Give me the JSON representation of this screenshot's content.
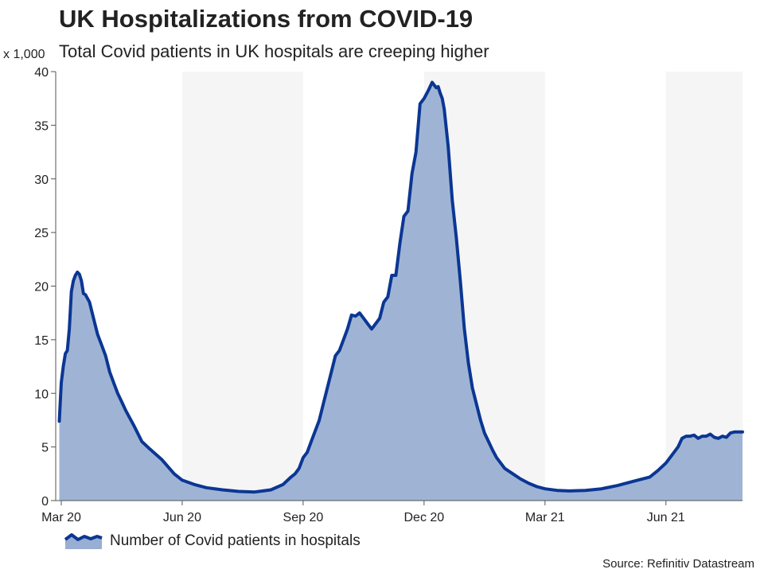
{
  "chart_data": {
    "type": "area",
    "title": "UK Hospitalizations from COVID-19",
    "subtitle": "Total Covid patients in UK hospitals are creeping higher",
    "ylabel": "x 1,000",
    "ylim": [
      0,
      40
    ],
    "yticks": [
      0,
      5,
      10,
      15,
      20,
      25,
      30,
      35,
      40
    ],
    "xlim": [
      0,
      16.9
    ],
    "xticks": [
      {
        "label": "Mar 20",
        "x": 0
      },
      {
        "label": "Jun 20",
        "x": 3
      },
      {
        "label": "Sep 20",
        "x": 6
      },
      {
        "label": "Dec 20",
        "x": 9
      },
      {
        "label": "Mar 21",
        "x": 12
      },
      {
        "label": "Jun 21",
        "x": 15
      }
    ],
    "shaded_bands": [
      [
        3,
        6
      ],
      [
        9,
        12
      ],
      [
        15,
        16.9
      ]
    ],
    "legend": "Number of Covid patients in hospitals",
    "source": "Source: Refinitiv Datastream",
    "colors": {
      "line": "#0b3693",
      "fill": "#98aed2",
      "band": "#f5f5f6"
    },
    "series": [
      {
        "name": "Number of Covid patients in hospitals",
        "x": [
          -0.05,
          0.0,
          0.05,
          0.1,
          0.15,
          0.2,
          0.25,
          0.3,
          0.35,
          0.4,
          0.45,
          0.5,
          0.55,
          0.6,
          0.7,
          0.8,
          0.9,
          1.0,
          1.1,
          1.2,
          1.3,
          1.4,
          1.5,
          1.6,
          1.8,
          2.0,
          2.2,
          2.5,
          2.8,
          3.0,
          3.3,
          3.6,
          4.0,
          4.4,
          4.8,
          5.0,
          5.2,
          5.5,
          5.7,
          5.8,
          5.9,
          6.0,
          6.1,
          6.2,
          6.3,
          6.4,
          6.5,
          6.6,
          6.7,
          6.8,
          6.9,
          7.0,
          7.1,
          7.2,
          7.3,
          7.4,
          7.5,
          7.6,
          7.7,
          7.8,
          7.9,
          8.0,
          8.1,
          8.2,
          8.3,
          8.4,
          8.5,
          8.6,
          8.7,
          8.8,
          8.9,
          9.0,
          9.1,
          9.2,
          9.3,
          9.35,
          9.4,
          9.45,
          9.5,
          9.6,
          9.7,
          9.8,
          9.9,
          10.0,
          10.1,
          10.2,
          10.3,
          10.4,
          10.5,
          10.6,
          10.7,
          10.8,
          10.9,
          11.0,
          11.2,
          11.4,
          11.6,
          11.8,
          12.0,
          12.3,
          12.6,
          13.0,
          13.4,
          13.8,
          14.2,
          14.6,
          14.8,
          15.0,
          15.2,
          15.3,
          15.4,
          15.5,
          15.6,
          15.7,
          15.8,
          15.9,
          16.0,
          16.1,
          16.2,
          16.3,
          16.4,
          16.5,
          16.6,
          16.7,
          16.8,
          16.9
        ],
        "values": [
          7.4,
          11.0,
          12.5,
          13.7,
          14.0,
          16.0,
          19.5,
          20.5,
          21.0,
          21.3,
          21.1,
          20.5,
          19.3,
          19.2,
          18.5,
          17.0,
          15.5,
          14.5,
          13.5,
          12.0,
          11.0,
          10.0,
          9.2,
          8.4,
          7.0,
          5.5,
          4.8,
          3.8,
          2.5,
          1.9,
          1.5,
          1.2,
          1.0,
          0.85,
          0.8,
          0.9,
          1.0,
          1.5,
          2.2,
          2.5,
          3.0,
          4.0,
          4.5,
          5.5,
          6.5,
          7.5,
          9.0,
          10.5,
          12.0,
          13.5,
          14.0,
          15.0,
          16.0,
          17.3,
          17.2,
          17.5,
          17.0,
          16.5,
          16.0,
          16.5,
          17.0,
          18.5,
          19.0,
          21.0,
          21.0,
          24.0,
          26.5,
          27.0,
          30.5,
          32.5,
          37.0,
          37.5,
          38.2,
          39.0,
          38.5,
          38.6,
          38.0,
          37.5,
          36.5,
          33.0,
          28.0,
          24.5,
          20.5,
          16.0,
          12.8,
          10.5,
          9.0,
          7.5,
          6.3,
          5.5,
          4.7,
          4.0,
          3.5,
          3.0,
          2.5,
          2.0,
          1.6,
          1.3,
          1.1,
          0.95,
          0.9,
          0.95,
          1.1,
          1.4,
          1.8,
          2.2,
          2.8,
          3.5,
          4.5,
          5.0,
          5.8,
          6.0,
          6.0,
          6.1,
          5.8,
          6.0,
          6.0,
          6.2,
          5.9,
          5.8,
          6.0,
          5.9,
          6.3,
          6.4,
          6.4,
          6.4
        ]
      }
    ]
  }
}
